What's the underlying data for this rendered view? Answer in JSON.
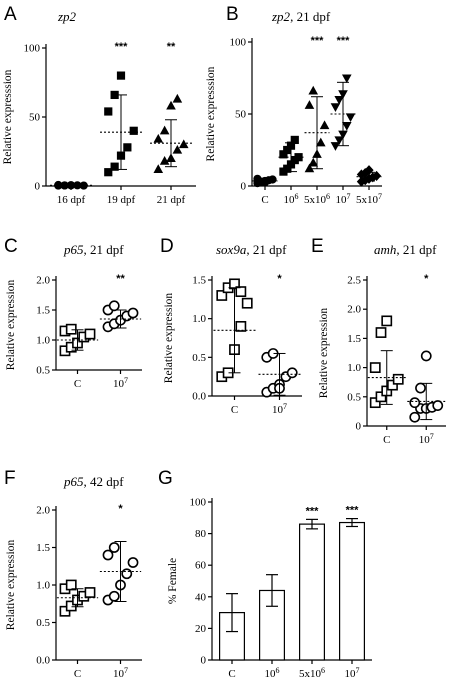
{
  "chart_data": [
    {
      "id": "A",
      "type": "scatter",
      "letter": "A",
      "title_gene": "zp2",
      "title_rest": "",
      "ylabel": "Relative expresssion",
      "ylim": [
        0,
        100
      ],
      "yticks": [
        0,
        50,
        100
      ],
      "ytick_labels": [
        "0",
        "50",
        "100"
      ],
      "categories": [
        "16 dpf",
        "19 dpf",
        "21 dpf"
      ],
      "markers": [
        "circle",
        "square",
        "triangle"
      ],
      "filled": true,
      "points": [
        [
          0.3,
          0.4,
          0.6,
          0.5,
          0.3,
          0.7,
          0.4,
          0.5
        ],
        [
          10,
          14,
          22,
          28,
          40,
          54,
          66,
          80
        ],
        [
          12,
          18,
          20,
          26,
          30,
          34,
          40,
          58,
          63
        ]
      ],
      "mean": [
        0.5,
        39,
        31
      ],
      "sd": [
        0.2,
        27,
        17
      ],
      "sig": [
        "",
        "***",
        "**"
      ]
    },
    {
      "id": "B",
      "type": "scatter",
      "letter": "B",
      "title_gene": "zp2",
      "title_rest": ", 21 dpf",
      "ylabel": "Relative expresssion",
      "ylim": [
        0,
        100
      ],
      "yticks": [
        0,
        50,
        100
      ],
      "ytick_labels": [
        "0",
        "50",
        "100"
      ],
      "categories": [
        "C",
        "10^6",
        "5x10^6",
        "10^7",
        "5x10^7"
      ],
      "markers": [
        "circle",
        "square",
        "triangle",
        "triangle-down",
        "diamond"
      ],
      "filled": true,
      "points": [
        [
          2,
          3,
          3.5,
          4,
          4.5,
          5,
          3,
          2.5
        ],
        [
          10,
          12,
          15,
          18,
          20,
          22,
          25,
          28,
          32
        ],
        [
          12,
          16,
          22,
          30,
          42,
          56,
          66
        ],
        [
          28,
          32,
          36,
          42,
          48,
          55,
          60,
          64,
          75
        ],
        [
          3,
          4,
          5,
          6,
          7,
          8,
          9,
          11
        ]
      ],
      "mean": [
        3.5,
        20,
        37,
        50,
        6.5
      ],
      "sd": [
        1,
        10,
        25,
        22,
        3
      ],
      "sig": [
        "",
        "",
        "***",
        "***",
        ""
      ]
    },
    {
      "id": "C",
      "type": "scatter",
      "letter": "C",
      "title_gene": "p65",
      "title_rest": ", 21 dpf",
      "ylabel": "Relative expression",
      "ylim": [
        0.5,
        2.0
      ],
      "yticks": [
        0.5,
        1.0,
        1.5,
        2.0
      ],
      "ytick_labels": [
        "0.5",
        "1.0",
        "1.5",
        "2.0"
      ],
      "categories": [
        "C",
        "10^7"
      ],
      "markers": [
        "square",
        "circle"
      ],
      "filled": false,
      "points": [
        [
          0.82,
          0.88,
          0.95,
          1.05,
          1.1,
          1.15,
          1.18
        ],
        [
          1.22,
          1.27,
          1.33,
          1.4,
          1.45,
          1.5,
          1.57
        ]
      ],
      "mean": [
        1.0,
        1.35
      ],
      "sd": [
        0.17,
        0.15
      ],
      "sig": [
        "",
        "**"
      ]
    },
    {
      "id": "D",
      "type": "scatter",
      "letter": "D",
      "title_gene": "sox9a",
      "title_rest": ", 21 dpf",
      "ylabel": "Relative expression",
      "ylim": [
        0.0,
        1.5
      ],
      "yticks": [
        0.0,
        0.5,
        1.0,
        1.5
      ],
      "ytick_labels": [
        "0.0",
        "0.5",
        "1.0",
        "1.5"
      ],
      "categories": [
        "C",
        "10^7"
      ],
      "markers": [
        "square",
        "circle"
      ],
      "filled": false,
      "points": [
        [
          0.25,
          0.3,
          0.6,
          0.9,
          1.2,
          1.3,
          1.4,
          1.45,
          1.35
        ],
        [
          0.05,
          0.1,
          0.15,
          0.25,
          0.3,
          0.5,
          0.55,
          0.1
        ]
      ],
      "mean": [
        0.85,
        0.28
      ],
      "sd": [
        0.55,
        0.27
      ],
      "sig": [
        "",
        "*"
      ]
    },
    {
      "id": "E",
      "type": "scatter",
      "letter": "E",
      "title_gene": "amh",
      "title_rest": ", 21 dpf",
      "ylabel": "Relative expression",
      "ylim": [
        0,
        2.5
      ],
      "yticks": [
        0,
        0.5,
        1.0,
        1.5,
        2.0,
        2.5
      ],
      "ytick_labels": [
        "0",
        "0.5",
        "1.0",
        "1.5",
        "2.0",
        "2.5"
      ],
      "categories": [
        "C",
        "10^7"
      ],
      "markers": [
        "square",
        "circle"
      ],
      "filled": false,
      "points": [
        [
          0.4,
          0.5,
          0.6,
          0.7,
          0.8,
          1.0,
          1.6,
          1.8
        ],
        [
          0.15,
          0.3,
          0.3,
          0.32,
          0.35,
          0.4,
          0.65,
          1.2
        ]
      ],
      "mean": [
        0.83,
        0.42
      ],
      "sd": [
        0.46,
        0.31
      ],
      "sig": [
        "",
        "*"
      ]
    },
    {
      "id": "F",
      "type": "scatter",
      "letter": "F",
      "title_gene": "p65",
      "title_rest": ", 42 dpf",
      "ylabel": "Relative expression",
      "ylim": [
        0.0,
        2.0
      ],
      "yticks": [
        0.0,
        0.5,
        1.0,
        1.5,
        2.0
      ],
      "ytick_labels": [
        "0.0",
        "0.5",
        "1.0",
        "1.5",
        "2.0"
      ],
      "categories": [
        "C",
        "10^7"
      ],
      "markers": [
        "square",
        "circle"
      ],
      "filled": false,
      "points": [
        [
          0.65,
          0.72,
          0.8,
          0.85,
          0.9,
          0.95,
          1.0
        ],
        [
          0.8,
          0.85,
          1.0,
          1.15,
          1.3,
          1.4,
          1.5
        ]
      ],
      "mean": [
        0.83,
        1.18
      ],
      "sd": [
        0.12,
        0.4
      ],
      "sig": [
        "",
        "*"
      ]
    },
    {
      "id": "G",
      "type": "bar",
      "letter": "G",
      "title_gene": "",
      "title_rest": "",
      "ylabel": "% Female",
      "ylim": [
        0,
        100
      ],
      "yticks": [
        0,
        20,
        40,
        60,
        80,
        100
      ],
      "ytick_labels": [
        "0",
        "20",
        "40",
        "60",
        "80",
        "100"
      ],
      "categories": [
        "C",
        "10^6",
        "5x10^6",
        "10^7"
      ],
      "values": [
        30,
        44,
        86,
        87
      ],
      "err": [
        12,
        10,
        3,
        2.5
      ],
      "sig": [
        "",
        "",
        "***",
        "***"
      ]
    }
  ]
}
